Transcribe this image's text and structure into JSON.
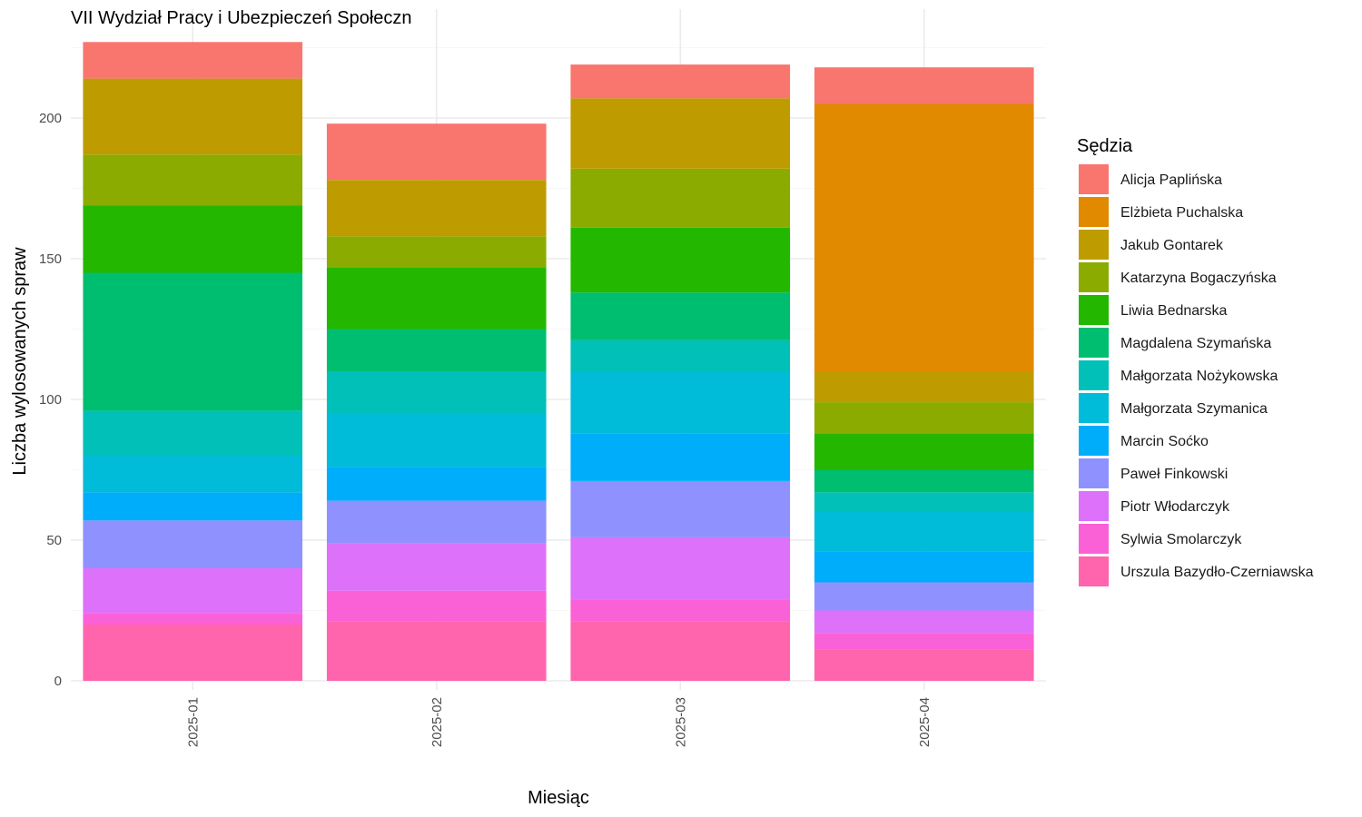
{
  "chart_data": {
    "type": "bar",
    "stacked": true,
    "title": "VII Wydział Pracy i Ubezpieczeń Społeczn",
    "xlabel": "Miesiąc",
    "ylabel": "Liczba wylosowanych spraw",
    "ylim": [
      0,
      230
    ],
    "yticks": [
      0,
      50,
      100,
      150,
      200
    ],
    "grid": true,
    "legend_title": "Sędzia",
    "legend_position": "right",
    "categories": [
      "2025-01",
      "2025-02",
      "2025-03",
      "2025-04"
    ],
    "series": [
      {
        "name": "Urszula Bazydło-Czerniawska",
        "color": "#FF65AC",
        "values": [
          20,
          21,
          21,
          11
        ]
      },
      {
        "name": "Sylwia Smolarczyk",
        "color": "#FB61D7",
        "values": [
          4,
          11,
          8,
          6
        ]
      },
      {
        "name": "Piotr Włodarczyk",
        "color": "#DE71F9",
        "values": [
          16,
          17,
          22,
          8
        ]
      },
      {
        "name": "Paweł Finkowski",
        "color": "#8F91FF",
        "values": [
          17,
          15,
          20,
          10
        ]
      },
      {
        "name": "Marcin Soćko",
        "color": "#00ADFA",
        "values": [
          10,
          12,
          17,
          11
        ]
      },
      {
        "name": "Małgorzata Szymanica",
        "color": "#00BCD8",
        "values": [
          13,
          19,
          22,
          14
        ]
      },
      {
        "name": "Małgorzata Nożykowska",
        "color": "#00C0B8",
        "values": [
          16,
          15,
          11,
          7
        ]
      },
      {
        "name": "Magdalena Szymańska",
        "color": "#00BE70",
        "values": [
          49,
          15,
          17,
          8
        ]
      },
      {
        "name": "Liwia Bednarska",
        "color": "#24B700",
        "values": [
          24,
          22,
          23,
          13
        ]
      },
      {
        "name": "Katarzyna Bogaczyńska",
        "color": "#8BAB00",
        "values": [
          18,
          11,
          21,
          11
        ]
      },
      {
        "name": "Jakub Gontarek",
        "color": "#BE9C00",
        "values": [
          27,
          20,
          25,
          11
        ]
      },
      {
        "name": "Elżbieta Puchalska",
        "color": "#E18A00",
        "values": [
          0,
          0,
          0,
          95
        ]
      },
      {
        "name": "Alicja Paplińska",
        "color": "#F8766D",
        "values": [
          13,
          20,
          12,
          13
        ]
      }
    ]
  }
}
